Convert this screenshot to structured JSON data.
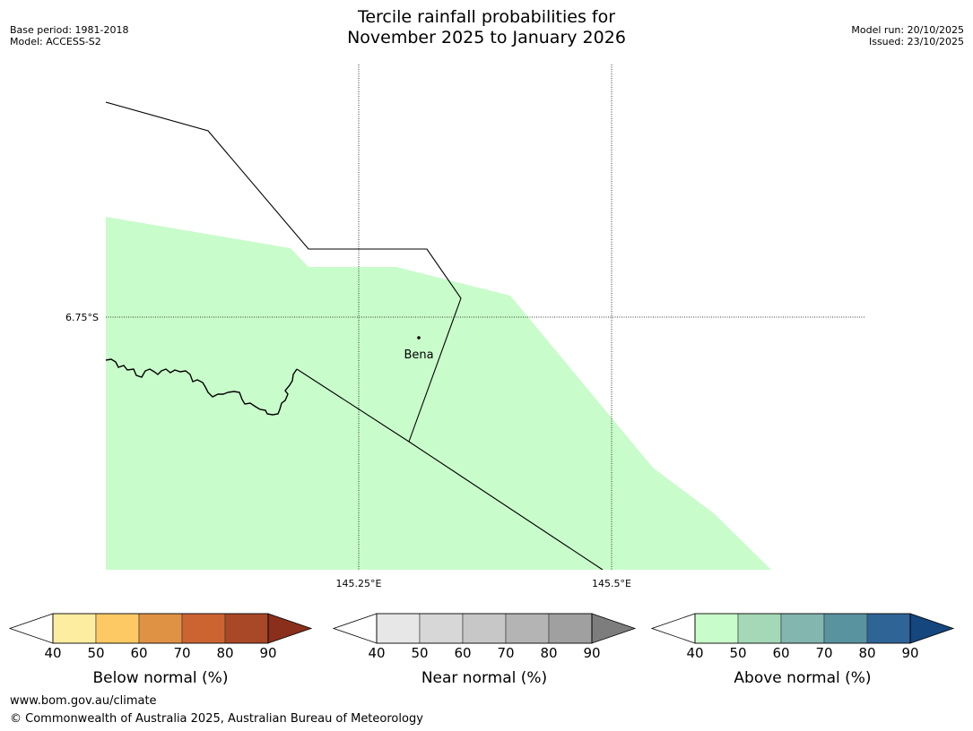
{
  "header": {
    "title_line1": "Tercile rainfall probabilities for",
    "title_line2": "November 2025 to January 2026",
    "base_period": "Base period: 1981-2018",
    "model": "Model: ACCESS-S2",
    "model_run": "Model run: 20/10/2025",
    "issued": "Issued: 23/10/2025"
  },
  "map": {
    "lat_label": "6.75°S",
    "lon_labels": [
      "145.25°E",
      "145.5°E"
    ],
    "place_name": "Bena",
    "shaded_category": "Above normal 40-50%",
    "shade_color": "#c9fccb"
  },
  "legends": [
    {
      "name": "below-normal",
      "label": "Below normal (%)",
      "ticks": [
        "40",
        "50",
        "60",
        "70",
        "80",
        "90"
      ],
      "colors": [
        "#fdeda0",
        "#fdc964",
        "#e09244",
        "#cc6432",
        "#a94827"
      ],
      "extend_color": "#8a2f1c"
    },
    {
      "name": "near-normal",
      "label": "Near normal (%)",
      "ticks": [
        "40",
        "50",
        "60",
        "70",
        "80",
        "90"
      ],
      "colors": [
        "#e7e7e7",
        "#d7d7d7",
        "#c7c7c7",
        "#b4b4b4",
        "#a0a0a0"
      ],
      "extend_color": "#7d7d7d"
    },
    {
      "name": "above-normal",
      "label": "Above normal (%)",
      "ticks": [
        "40",
        "50",
        "60",
        "70",
        "80",
        "90"
      ],
      "colors": [
        "#c9fccb",
        "#a4d8b6",
        "#82b6ae",
        "#5a93a0",
        "#2f6497"
      ],
      "extend_color": "#15467e"
    }
  ],
  "footer": {
    "url": "www.bom.gov.au/climate",
    "copyright": "© Commonwealth of Australia 2025, Australian Bureau of Meteorology"
  }
}
